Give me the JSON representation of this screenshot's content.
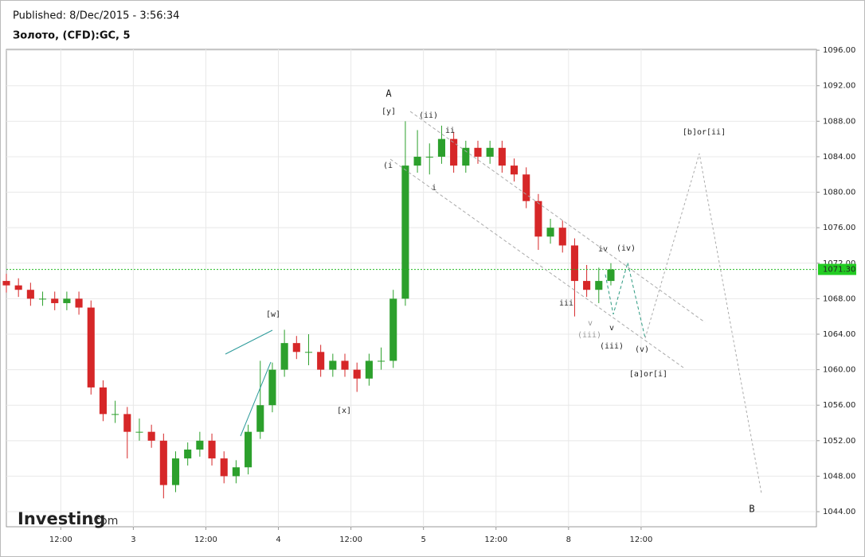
{
  "header": {
    "published": "Published: 8/Dec/2015 - 3:56:34",
    "symbol": "Золото, (CFD):GC, 5"
  },
  "logo": {
    "brand": "Investing",
    "suffix": ".com"
  },
  "chart_data": {
    "type": "candlestick",
    "up_color": "#2ca02c",
    "down_color": "#d62728",
    "grid": true,
    "x": [
      0,
      2,
      4,
      6,
      8,
      10,
      12,
      14,
      16,
      18,
      20,
      22,
      24,
      26,
      28,
      30,
      32,
      34,
      36,
      38,
      40,
      42,
      44,
      46,
      48,
      50,
      52,
      54,
      56,
      58,
      60,
      62,
      64,
      66,
      68,
      70,
      72,
      74,
      76,
      78,
      80,
      82,
      84,
      86,
      88,
      90,
      92,
      94,
      96,
      98,
      100
    ],
    "open": [
      1070,
      1069.5,
      1069,
      1068,
      1068,
      1067.5,
      1068,
      1067,
      1058,
      1055,
      1055,
      1053,
      1053,
      1052,
      1047,
      1050,
      1051,
      1052,
      1050,
      1048,
      1049,
      1053,
      1056,
      1060,
      1063,
      1062,
      1062,
      1060,
      1061,
      1060,
      1059,
      1061,
      1061,
      1068,
      1083,
      1084,
      1084,
      1086,
      1083,
      1085,
      1084,
      1085,
      1083,
      1082,
      1079,
      1075,
      1076,
      1074,
      1070,
      1069,
      1070
    ],
    "high": [
      1070.8,
      1070.3,
      1069.8,
      1068.8,
      1068.8,
      1068.8,
      1068.8,
      1067.8,
      1058.8,
      1056.5,
      1055.8,
      1054.5,
      1053.8,
      1052.8,
      1050.8,
      1051.8,
      1053,
      1052.8,
      1050.8,
      1049.8,
      1053.8,
      1061,
      1060.8,
      1064.5,
      1063.8,
      1064,
      1062.8,
      1061.8,
      1061.8,
      1060.8,
      1061.8,
      1062.5,
      1069,
      1088,
      1087,
      1085.5,
      1087.5,
      1086.8,
      1085.8,
      1085.8,
      1085.8,
      1085.8,
      1083.8,
      1082.8,
      1079.8,
      1077,
      1076.8,
      1074.8,
      1071.8,
      1071.5,
      1072
    ],
    "low": [
      1068.7,
      1068.2,
      1067.2,
      1067.2,
      1066.7,
      1066.7,
      1066.2,
      1057.2,
      1054.2,
      1054,
      1050,
      1052,
      1051.2,
      1045.5,
      1046.2,
      1049.2,
      1050.2,
      1049.2,
      1047.2,
      1047.2,
      1048.2,
      1052.2,
      1055.2,
      1059.2,
      1061.2,
      1060.5,
      1059.2,
      1059.2,
      1059.2,
      1057.5,
      1058.2,
      1060,
      1060.2,
      1067.2,
      1082.2,
      1082,
      1083.2,
      1082.2,
      1082.2,
      1083.2,
      1083.2,
      1082.2,
      1081.2,
      1078.2,
      1073.5,
      1074.2,
      1073.2,
      1066,
      1068.2,
      1067.5,
      1069.5
    ],
    "close": [
      1069.5,
      1069,
      1068,
      1068,
      1067.5,
      1068,
      1067,
      1058,
      1055,
      1055,
      1053,
      1053,
      1052,
      1047,
      1050,
      1051,
      1052,
      1050,
      1048,
      1049,
      1053,
      1056,
      1060,
      1063,
      1062,
      1062,
      1060,
      1061,
      1060,
      1059,
      1061,
      1061,
      1068,
      1083,
      1084,
      1084,
      1086,
      1083,
      1085,
      1084,
      1085,
      1083,
      1082,
      1079,
      1075,
      1076,
      1074,
      1070,
      1069,
      1070,
      1071.3
    ],
    "xlim": [
      0,
      134
    ],
    "xticks": [
      {
        "value": 9,
        "label": "12:00"
      },
      {
        "value": 21,
        "label": "3"
      },
      {
        "value": 33,
        "label": "12:00"
      },
      {
        "value": 45,
        "label": "4"
      },
      {
        "value": 57,
        "label": "12:00"
      },
      {
        "value": 69,
        "label": "5"
      },
      {
        "value": 81,
        "label": "12:00"
      },
      {
        "value": 93,
        "label": "8"
      },
      {
        "value": 105,
        "label": "12:00"
      }
    ],
    "ylim": [
      1042.3,
      1096.1
    ],
    "yticks": [
      {
        "value": 1044,
        "label": "1044.00"
      },
      {
        "value": 1048,
        "label": "1048.00"
      },
      {
        "value": 1052,
        "label": "1052.00"
      },
      {
        "value": 1056,
        "label": "1056.00"
      },
      {
        "value": 1060,
        "label": "1060.00"
      },
      {
        "value": 1064,
        "label": "1064.00"
      },
      {
        "value": 1068,
        "label": "1068.00"
      },
      {
        "value": 1072,
        "label": "1072.00"
      },
      {
        "value": 1076,
        "label": "1076.00"
      },
      {
        "value": 1080,
        "label": "1080.00"
      },
      {
        "value": 1084,
        "label": "1084.00"
      },
      {
        "value": 1088,
        "label": "1088.00"
      },
      {
        "value": 1092,
        "label": "1092.00"
      },
      {
        "value": 1096,
        "label": "1096.00"
      }
    ],
    "last_price": {
      "value": 1071.3,
      "label": "1071.30"
    },
    "annotations": [
      "A",
      "[y]",
      "(ii)",
      "ii",
      "i",
      "(i",
      "[w]",
      "[x]",
      "iii",
      "iv",
      "(iv)",
      "v",
      "(iii)",
      "v",
      "(iii)",
      "(v)",
      "[a]or[i]",
      "[b]or[ii]",
      "B"
    ]
  }
}
